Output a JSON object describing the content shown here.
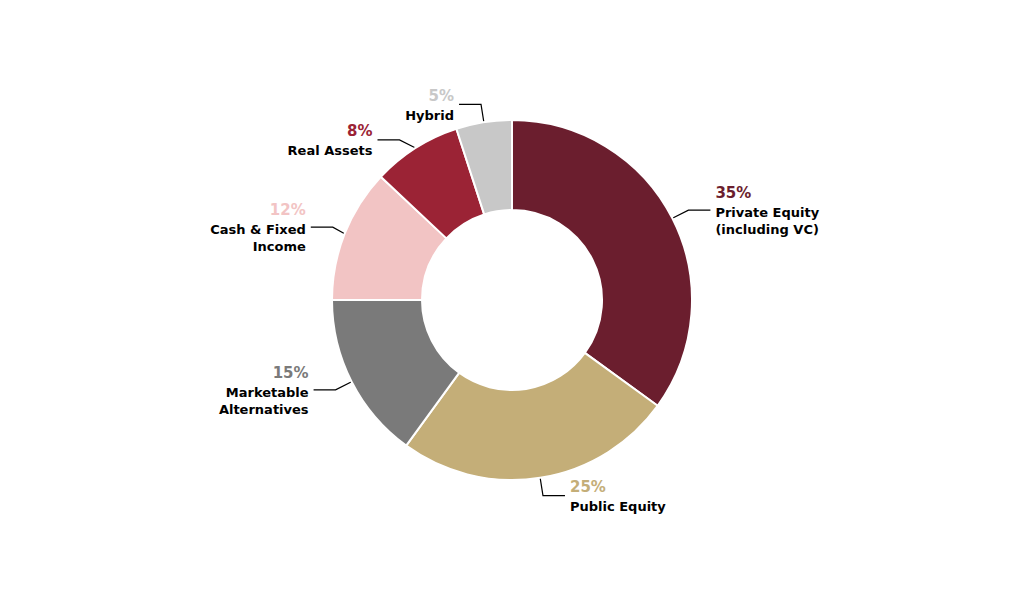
{
  "chart_data": {
    "type": "pie",
    "categories": [
      "Private Equity\n(including VC)",
      "Public Equity",
      "Marketable\nAlternatives",
      "Cash & Fixed\nIncome",
      "Real Assets",
      "Hybrid"
    ],
    "values": [
      35,
      25,
      15,
      12,
      8,
      5
    ],
    "value_labels": [
      "35%",
      "25%",
      "15%",
      "12%",
      "8%",
      "5%"
    ],
    "colors": [
      "#6B1E2E",
      "#C4AE78",
      "#7A7A7A",
      "#F2C4C4",
      "#9B2335",
      "#C8C8C8"
    ],
    "data_labels": true
  }
}
